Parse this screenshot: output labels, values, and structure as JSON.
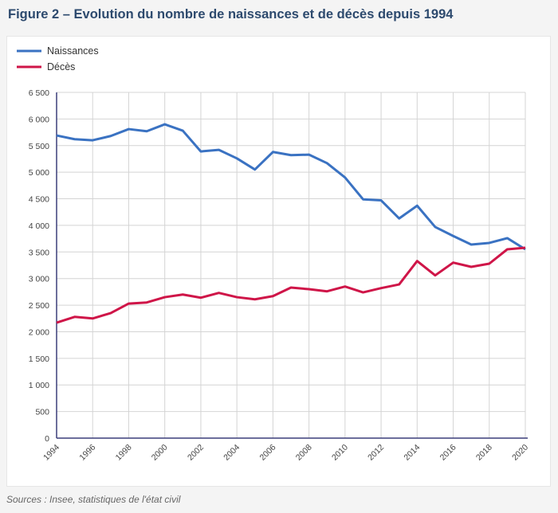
{
  "title": "Figure 2 – Evolution du nombre de naissances et de décès depuis 1994",
  "source": "Sources : Insee, statistiques de l'état civil",
  "chart_data": {
    "type": "line",
    "title": "Figure 2 – Evolution du nombre de naissances et de décès depuis 1994",
    "x": [
      1994,
      1995,
      1996,
      1997,
      1998,
      1999,
      2000,
      2001,
      2002,
      2003,
      2004,
      2005,
      2006,
      2007,
      2008,
      2009,
      2010,
      2011,
      2012,
      2013,
      2014,
      2015,
      2016,
      2017,
      2018,
      2019,
      2020
    ],
    "xticks": [
      "1994",
      "1996",
      "1998",
      "2000",
      "2002",
      "2004",
      "2006",
      "2008",
      "2010",
      "2012",
      "2014",
      "2016",
      "2018",
      "2020"
    ],
    "yticks": [
      "0",
      "500",
      "1 000",
      "1 500",
      "2 000",
      "2 500",
      "3 000",
      "3 500",
      "4 000",
      "4 500",
      "5 000",
      "5 500",
      "6 000",
      "6 500"
    ],
    "ylim": [
      0,
      6500
    ],
    "xlim": [
      1994,
      2020
    ],
    "grid": true,
    "legend": "top-left",
    "series": [
      {
        "name": "Naissances",
        "color": "#3a72c2",
        "values": [
          5690,
          5620,
          5600,
          5680,
          5810,
          5770,
          5900,
          5780,
          5390,
          5420,
          5260,
          5050,
          5380,
          5320,
          5330,
          5170,
          4900,
          4490,
          4470,
          4130,
          4370,
          3970,
          3800,
          3640,
          3670,
          3760,
          3550
        ]
      },
      {
        "name": "Décès",
        "color": "#cf1548",
        "values": [
          2170,
          2280,
          2250,
          2350,
          2530,
          2550,
          2650,
          2700,
          2640,
          2730,
          2650,
          2610,
          2670,
          2830,
          2800,
          2760,
          2850,
          2740,
          2820,
          2890,
          3330,
          3060,
          3300,
          3220,
          3280,
          3550,
          3580
        ]
      }
    ]
  }
}
